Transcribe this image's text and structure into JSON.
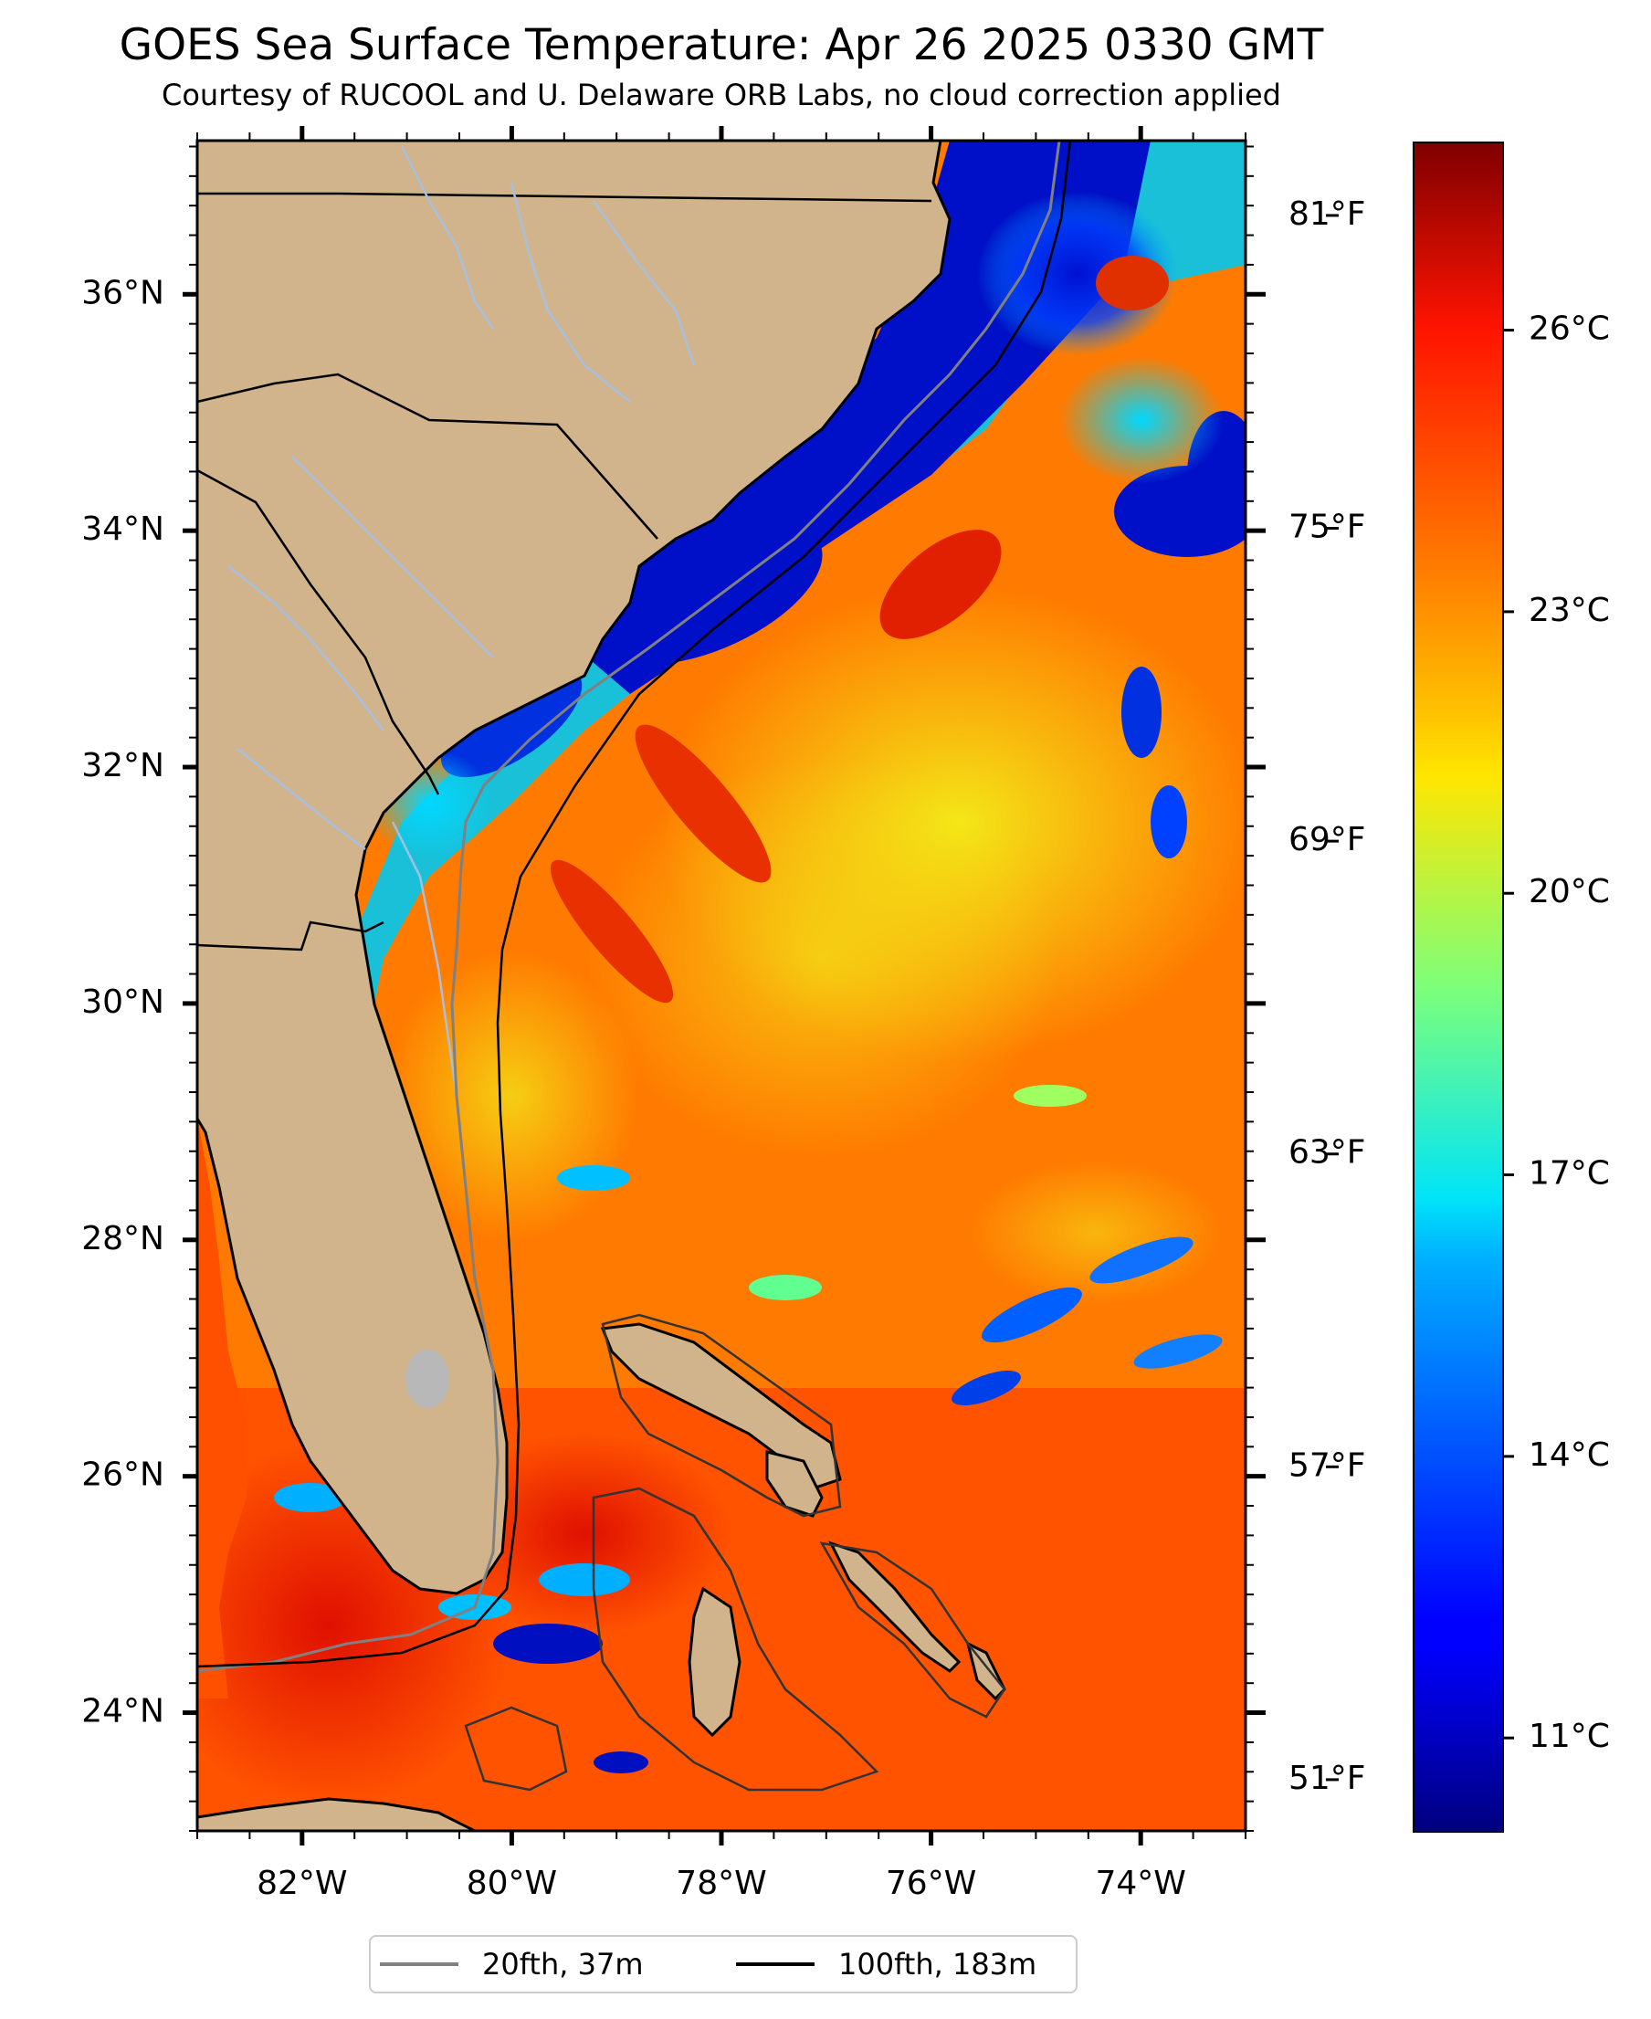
{
  "title": "GOES Sea Surface Temperature: Apr 26 2025 0330 GMT",
  "subtitle": "Courtesy of RUCOOL and U. Delaware ORB Labs, no cloud correction applied",
  "map": {
    "lat_range": [
      23.0,
      37.3
    ],
    "lon_range": [
      -83.0,
      -73.0
    ],
    "lat_ticks": [
      "24°N",
      "26°N",
      "28°N",
      "30°N",
      "32°N",
      "34°N",
      "36°N"
    ],
    "lon_ticks": [
      "82°W",
      "80°W",
      "78°W",
      "76°W",
      "74°W"
    ],
    "fahrenheit_ticks": [
      "51°F",
      "57°F",
      "63°F",
      "69°F",
      "75°F",
      "81°F"
    ],
    "land_color": "#d2b48c",
    "river_color": "#a7bfe0"
  },
  "colorbar": {
    "colormap": "jet",
    "range_c": [
      10.0,
      28.0
    ],
    "ticks": [
      "11°C",
      "14°C",
      "17°C",
      "20°C",
      "23°C",
      "26°C"
    ]
  },
  "legend": {
    "items": [
      {
        "label": "20fth, 37m",
        "color": "#808080"
      },
      {
        "label": "100fth, 183m",
        "color": "#000000"
      }
    ]
  }
}
